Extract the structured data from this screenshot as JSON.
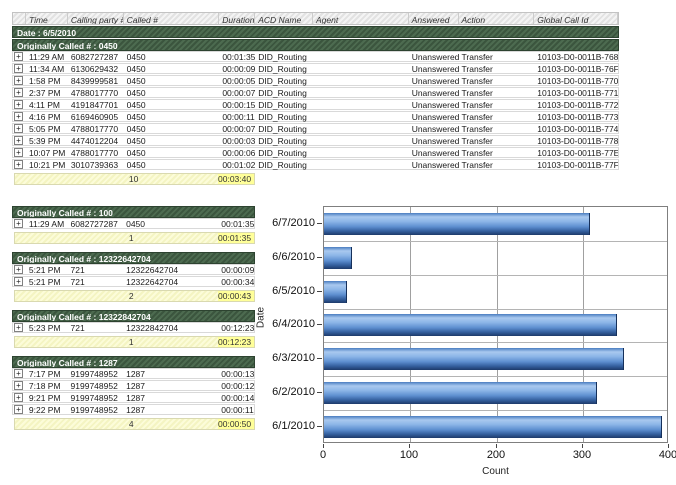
{
  "report": {
    "columns": [
      {
        "label": "Time",
        "width": 42,
        "key": "time"
      },
      {
        "label": "Calling party #",
        "width": 56,
        "key": "calling"
      },
      {
        "label": "Called #",
        "width": 96,
        "key": "called"
      },
      {
        "label": "Duration",
        "width": 36,
        "key": "duration",
        "align": "right"
      },
      {
        "label": "ACD Name",
        "width": 58,
        "key": "acd"
      },
      {
        "label": "Agent",
        "width": 96,
        "key": "agent"
      },
      {
        "label": "Answered",
        "width": 50,
        "key": "answered"
      },
      {
        "label": "Action",
        "width": 76,
        "key": "action"
      },
      {
        "label": "Global Call Id",
        "width": 84,
        "key": "global_id"
      }
    ],
    "expand_icon": "+",
    "date_group_label": "Date : 6/5/2010",
    "top_group": {
      "header": "Originally Called # : 0450",
      "rows": [
        {
          "time": "11:29 AM",
          "calling": "6082727287",
          "called": "0450",
          "duration": "00:01:35",
          "acd": "DID_Routing",
          "agent": "",
          "answered": "Unanswered",
          "action": "Transfer",
          "global_id": "10103-D0-0011B-768"
        },
        {
          "time": "11:34 AM",
          "calling": "6130629432",
          "called": "0450",
          "duration": "00:00:09",
          "acd": "DID_Routing",
          "agent": "",
          "answered": "Unanswered",
          "action": "Transfer",
          "global_id": "10103-D0-0011B-76F"
        },
        {
          "time": "1:58 PM",
          "calling": "8439999581",
          "called": "0450",
          "duration": "00:00:05",
          "acd": "DID_Routing",
          "agent": "",
          "answered": "Unanswered",
          "action": "Transfer",
          "global_id": "10103-D0-0011B-770"
        },
        {
          "time": "2:37 PM",
          "calling": "4788017770",
          "called": "0450",
          "duration": "00:00:07",
          "acd": "DID_Routing",
          "agent": "",
          "answered": "Unanswered",
          "action": "Transfer",
          "global_id": "10103-D0-0011B-771"
        },
        {
          "time": "4:11 PM",
          "calling": "4191847701",
          "called": "0450",
          "duration": "00:00:15",
          "acd": "DID_Routing",
          "agent": "",
          "answered": "Unanswered",
          "action": "Transfer",
          "global_id": "10103-D0-0011B-772"
        },
        {
          "time": "4:16 PM",
          "calling": "6169460905",
          "called": "0450",
          "duration": "00:00:11",
          "acd": "DID_Routing",
          "agent": "",
          "answered": "Unanswered",
          "action": "Transfer",
          "global_id": "10103-D0-0011B-773"
        },
        {
          "time": "5:05 PM",
          "calling": "4788017770",
          "called": "0450",
          "duration": "00:00:07",
          "acd": "DID_Routing",
          "agent": "",
          "answered": "Unanswered",
          "action": "Transfer",
          "global_id": "10103-D0-0011B-774"
        },
        {
          "time": "5:39 PM",
          "calling": "4474012204",
          "called": "0450",
          "duration": "00:00:03",
          "acd": "DID_Routing",
          "agent": "",
          "answered": "Unanswered",
          "action": "Transfer",
          "global_id": "10103-D0-0011B-778"
        },
        {
          "time": "10:07 PM",
          "calling": "4788017770",
          "called": "0450",
          "duration": "00:00:06",
          "acd": "DID_Routing",
          "agent": "",
          "answered": "Unanswered",
          "action": "Transfer",
          "global_id": "10103-D0-0011B-77E"
        },
        {
          "time": "10:21 PM",
          "calling": "3010739363",
          "called": "0450",
          "duration": "00:01:02",
          "acd": "DID_Routing",
          "agent": "",
          "answered": "Unanswered",
          "action": "Transfer",
          "global_id": "10103-D0-0011B-77F"
        }
      ],
      "summary": {
        "count": "10",
        "duration": "00:03:40"
      }
    },
    "sub_groups": [
      {
        "header": "Originally Called # : 100",
        "rows": [
          {
            "time": "11:29 AM",
            "calling": "6082727287",
            "called": "0450",
            "duration": "00:01:35"
          }
        ],
        "summary": {
          "count": "1",
          "duration": "00:01:35"
        }
      },
      {
        "header": "Originally Called # : 12322642704",
        "rows": [
          {
            "time": "5:21 PM",
            "calling": "721",
            "called": "12322642704",
            "duration": "00:00:09"
          },
          {
            "time": "5:21 PM",
            "calling": "721",
            "called": "12322642704",
            "duration": "00:00:34"
          }
        ],
        "summary": {
          "count": "2",
          "duration": "00:00:43"
        }
      },
      {
        "header": "Originally Called # : 12322842704",
        "rows": [
          {
            "time": "5:23 PM",
            "calling": "721",
            "called": "12322842704",
            "duration": "00:12:23"
          }
        ],
        "summary": {
          "count": "1",
          "duration": "00:12:23"
        }
      },
      {
        "header": "Originally Called # : 1287",
        "rows": [
          {
            "time": "7:17 PM",
            "calling": "9199748952",
            "called": "1287",
            "duration": "00:00:13"
          },
          {
            "time": "7:18 PM",
            "calling": "9199748952",
            "called": "1287",
            "duration": "00:00:12"
          },
          {
            "time": "9:21 PM",
            "calling": "9199748952",
            "called": "1287",
            "duration": "00:00:14"
          },
          {
            "time": "9:22 PM",
            "calling": "9199748952",
            "called": "1287",
            "duration": "00:00:11"
          }
        ],
        "summary": {
          "count": "4",
          "duration": "00:00:50"
        }
      }
    ]
  },
  "chart_data": {
    "type": "bar",
    "orientation": "horizontal",
    "categories": [
      "6/7/2010",
      "6/6/2010",
      "6/5/2010",
      "6/4/2010",
      "6/3/2010",
      "6/2/2010",
      "6/1/2010"
    ],
    "values": [
      308,
      33,
      27,
      340,
      348,
      317,
      392
    ],
    "xlabel": "Count",
    "ylabel": "Date",
    "xlim": [
      0,
      400
    ],
    "xticks": [
      "0",
      "100",
      "200",
      "300",
      "400"
    ],
    "grid": true,
    "legend": false,
    "bar_color": "#5e8fd0"
  },
  "colors": {
    "group_header_bg": "#3b553e",
    "summary_bg": "#f8f8cc",
    "summary_highlight": "#ffff99",
    "bar_dark": "#1d3a6a"
  }
}
